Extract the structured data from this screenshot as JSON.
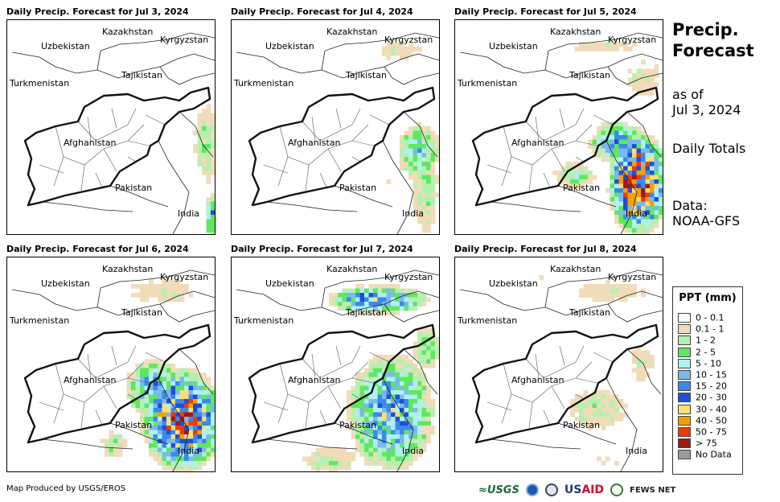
{
  "panels": [
    {
      "title": "Daily Precip. Forecast for Jul 3, 2024"
    },
    {
      "title": "Daily Precip. Forecast for Jul 4, 2024"
    },
    {
      "title": "Daily Precip. Forecast for Jul 5, 2024"
    },
    {
      "title": "Daily Precip. Forecast for Jul 6, 2024"
    },
    {
      "title": "Daily Precip. Forecast for Jul 7, 2024"
    },
    {
      "title": "Daily Precip. Forecast for Jul 8, 2024"
    }
  ],
  "map_labels": {
    "kazakhstan": "Kazakhstan",
    "kyrgyzstan": "Kyrgyzstan",
    "uzbekistan": "Uzbekistan",
    "tajikistan": "Tajikistan",
    "turkmenistan": "Turkmenistan",
    "afghanistan": "Afghanistan",
    "pakistan": "Pakistan",
    "india": "India"
  },
  "side": {
    "title_line1": "Precip.",
    "title_line2": "Forecast",
    "as_of": "as of",
    "date": "Jul 3, 2024",
    "totals": "Daily Totals",
    "data_label": "Data:",
    "data_source": "NOAA-GFS"
  },
  "legend": {
    "title": "PPT (mm)",
    "items": [
      {
        "label": "0 - 0.1",
        "color": "#ffffff"
      },
      {
        "label": "0.1 - 1",
        "color": "#f0dcb8"
      },
      {
        "label": "1 - 2",
        "color": "#b6f0b0"
      },
      {
        "label": "2 - 5",
        "color": "#5ee860"
      },
      {
        "label": "5 - 10",
        "color": "#b0f0f4"
      },
      {
        "label": "10 - 15",
        "color": "#7ab8ee"
      },
      {
        "label": "15 - 20",
        "color": "#3a8ae8"
      },
      {
        "label": "20 - 30",
        "color": "#1f4fd8"
      },
      {
        "label": "30 - 40",
        "color": "#f6e07a"
      },
      {
        "label": "40 - 50",
        "color": "#f6a000"
      },
      {
        "label": "50 - 75",
        "color": "#f03a00"
      },
      {
        "label": "> 75",
        "color": "#a01818"
      },
      {
        "label": "No Data",
        "color": "#9a9a9a"
      }
    ]
  },
  "footer": {
    "credit": "Map Produced by USGS/EROS",
    "logo_usgs": "≈USGS",
    "logo_usaid_prefix": "US",
    "logo_usaid_suffix": "AID",
    "logo_fews": "FEWS NET"
  }
}
